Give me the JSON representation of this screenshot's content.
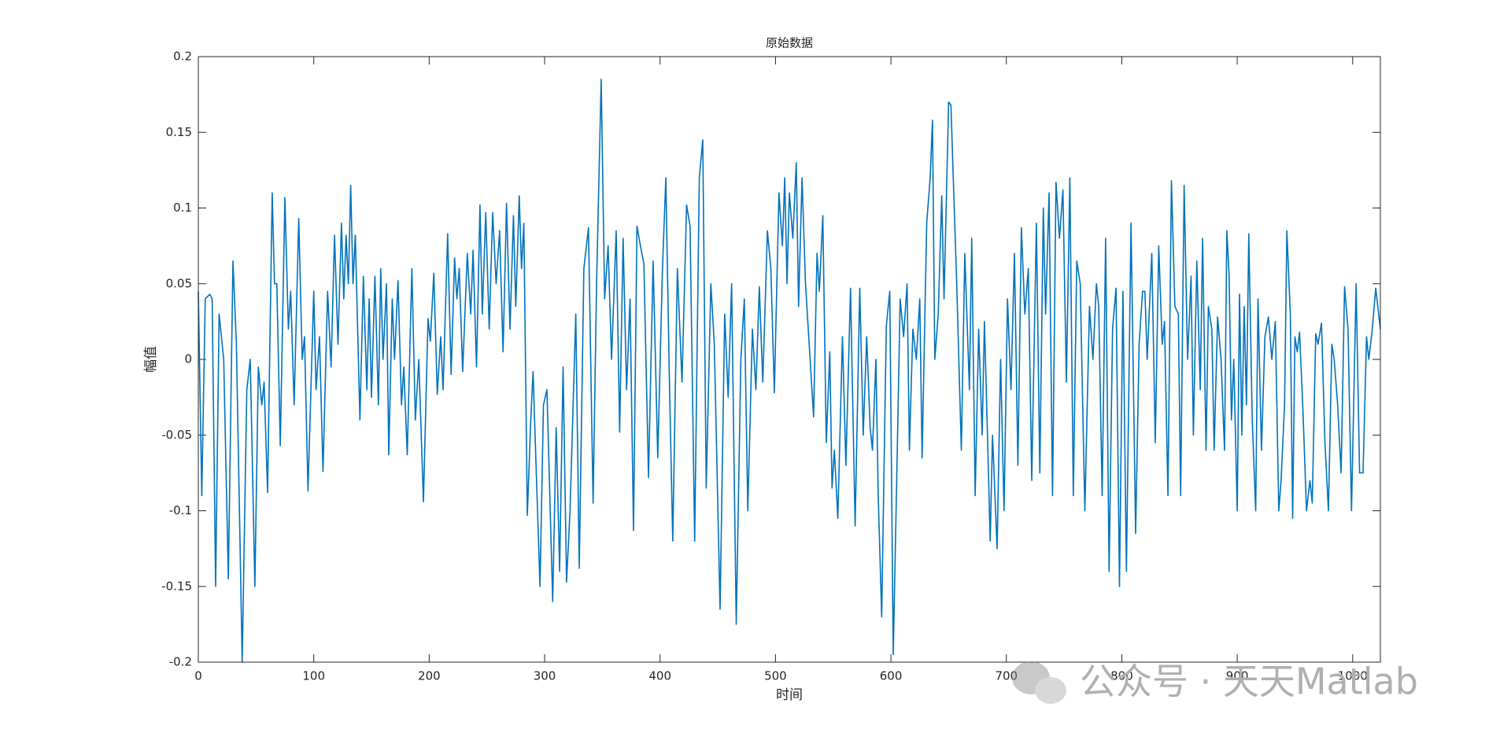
{
  "chart_data": {
    "type": "line",
    "title": "原始数据",
    "xlabel": "时间",
    "ylabel": "幅值",
    "color": "#0072bd",
    "xlim": [
      0,
      1024
    ],
    "ylim": [
      -0.2,
      0.2
    ],
    "xticks": [
      0,
      100,
      200,
      300,
      400,
      500,
      600,
      700,
      800,
      900,
      1000
    ],
    "yticks": [
      -0.2,
      -0.15,
      -0.1,
      -0.05,
      0,
      0.05,
      0.1,
      0.15,
      0.2
    ],
    "watermark": "公众号 · 天天Matlab",
    "x": [
      0,
      3,
      6,
      10,
      12,
      15,
      18,
      22,
      26,
      30,
      33,
      38,
      42,
      45,
      49,
      52,
      55,
      57,
      60,
      64,
      66,
      68,
      71,
      75,
      78,
      80,
      83,
      87,
      90,
      92,
      95,
      100,
      102,
      105,
      108,
      112,
      115,
      118,
      121,
      124,
      126,
      128,
      130,
      132,
      134,
      136,
      140,
      143,
      146,
      148,
      150,
      153,
      156,
      158,
      160,
      163,
      165,
      168,
      170,
      173,
      176,
      178,
      181,
      185,
      188,
      191,
      195,
      199,
      201,
      204,
      207,
      210,
      212,
      216,
      219,
      222,
      224,
      226,
      229,
      233,
      236,
      238,
      241,
      244,
      246,
      249,
      252,
      255,
      258,
      261,
      264,
      267,
      270,
      273,
      275,
      278,
      280,
      282,
      285,
      288,
      290,
      293,
      296,
      299,
      302,
      307,
      310,
      313,
      316,
      319,
      322,
      327,
      330,
      334,
      338,
      342,
      345,
      349,
      352,
      355,
      358,
      362,
      365,
      368,
      371,
      374,
      377,
      380,
      383,
      386,
      390,
      394,
      398,
      402,
      405,
      408,
      411,
      415,
      419,
      423,
      426,
      430,
      434,
      437,
      440,
      444,
      447,
      452,
      456,
      459,
      462,
      466,
      470,
      473,
      476,
      480,
      483,
      486,
      489,
      493,
      496,
      499,
      503,
      506,
      508,
      510,
      512,
      515,
      518,
      520,
      523,
      526,
      530,
      533,
      536,
      538,
      541,
      544,
      547,
      549,
      551,
      554,
      558,
      561,
      565,
      569,
      573,
      576,
      579,
      582,
      584,
      587,
      589,
      592,
      596,
      599,
      602,
      605,
      608,
      611,
      614,
      616,
      619,
      622,
      625,
      627,
      631,
      634,
      636,
      638,
      641,
      644,
      646,
      650,
      652,
      654,
      657,
      661,
      664,
      668,
      670,
      673,
      676,
      679,
      681,
      684,
      686,
      688,
      692,
      695,
      698,
      701,
      704,
      707,
      710,
      713,
      716,
      719,
      722,
      726,
      729,
      732,
      734,
      737,
      740,
      743,
      746,
      749,
      752,
      755,
      758,
      761,
      764,
      768,
      772,
      775,
      778,
      780,
      783,
      786,
      789,
      792,
      795,
      798,
      801,
      804,
      808,
      812,
      815,
      818,
      820,
      822,
      826,
      829,
      832,
      835,
      837,
      840,
      843,
      846,
      849,
      851,
      854,
      857,
      860,
      862,
      865,
      868,
      870,
      873,
      875,
      878,
      880,
      883,
      886,
      889,
      891,
      893,
      895,
      897,
      900,
      902,
      904,
      906,
      908,
      910,
      913,
      916,
      918,
      921,
      924,
      927,
      930,
      933,
      936,
      938,
      941,
      943,
      946,
      948,
      950,
      952,
      954,
      957,
      960,
      963,
      965,
      968,
      970,
      973,
      976,
      979,
      982,
      984,
      987,
      990,
      993,
      996,
      999,
      1003,
      1006,
      1009,
      1012,
      1014,
      1017,
      1020,
      1024
    ],
    "values": [
      0.045,
      -0.09,
      0.04,
      0.043,
      0.04,
      -0.15,
      0.03,
      0,
      -0.145,
      0.065,
      0.01,
      -0.2,
      -0.02,
      0,
      -0.15,
      -0.005,
      -0.03,
      -0.015,
      -0.088,
      0.11,
      0.05,
      0.05,
      -0.057,
      0.107,
      0.02,
      0.045,
      -0.03,
      0.093,
      0,
      0.015,
      -0.087,
      0.045,
      -0.02,
      0.015,
      -0.074,
      0.045,
      -0.005,
      0.082,
      0.01,
      0.09,
      0.04,
      0.082,
      0.05,
      0.115,
      0.05,
      0.082,
      -0.04,
      0.055,
      -0.02,
      0.04,
      -0.025,
      0.055,
      -0.03,
      0.06,
      0,
      0.05,
      -0.063,
      0.04,
      0,
      0.052,
      -0.03,
      -0.005,
      -0.063,
      0.06,
      -0.04,
      0,
      -0.094,
      0.027,
      0.012,
      0.057,
      -0.023,
      0.015,
      -0.02,
      0.083,
      -0.01,
      0.067,
      0.04,
      0.06,
      -0.008,
      0.07,
      0.03,
      0.072,
      -0.005,
      0.102,
      0.03,
      0.097,
      0.02,
      0.097,
      0.05,
      0.085,
      0.005,
      0.103,
      0.02,
      0.095,
      0.035,
      0.108,
      0.06,
      0.09,
      -0.103,
      -0.04,
      -0.008,
      -0.08,
      -0.15,
      -0.03,
      -0.02,
      -0.16,
      -0.045,
      -0.14,
      -0.005,
      -0.147,
      -0.1,
      0.03,
      -0.138,
      0.06,
      0.087,
      -0.095,
      0.05,
      0.185,
      0.04,
      0.075,
      0,
      0.085,
      -0.048,
      0.08,
      -0.02,
      0.04,
      -0.113,
      0.088,
      0.075,
      0.063,
      -0.078,
      0.065,
      -0.065,
      0.058,
      0.12,
      -0.01,
      -0.12,
      0.06,
      -0.015,
      0.102,
      0.088,
      -0.12,
      0.12,
      0.145,
      -0.085,
      0.05,
      0.01,
      -0.165,
      0.03,
      -0.025,
      0.05,
      -0.175,
      0,
      0.04,
      -0.1,
      0.02,
      -0.02,
      0.048,
      -0.015,
      0.085,
      0.06,
      -0.022,
      0.11,
      0.075,
      0.12,
      0.05,
      0.11,
      0.08,
      0.13,
      0.035,
      0.12,
      0.05,
      0,
      -0.038,
      0.07,
      0.045,
      0.095,
      -0.055,
      0.005,
      -0.085,
      -0.06,
      -0.105,
      0.015,
      -0.07,
      0.047,
      -0.11,
      0.047,
      -0.05,
      0.015,
      -0.045,
      -0.06,
      0,
      -0.09,
      -0.17,
      0.022,
      0.045,
      -0.195,
      -0.08,
      0.04,
      0.015,
      0.05,
      -0.06,
      0.02,
      0,
      0.04,
      -0.065,
      0.09,
      0.12,
      0.158,
      0,
      0.03,
      0.108,
      0.04,
      0.17,
      0.168,
      0.12,
      0.05,
      -0.06,
      0.07,
      -0.02,
      0.08,
      -0.09,
      0.02,
      -0.05,
      0.025,
      -0.06,
      -0.12,
      -0.05,
      -0.125,
      0,
      -0.1,
      0.04,
      -0.02,
      0.07,
      -0.07,
      0.087,
      0.03,
      0.06,
      -0.08,
      0.09,
      -0.075,
      0.1,
      0.03,
      0.11,
      -0.09,
      0.117,
      0.08,
      0.112,
      -0.015,
      0.12,
      -0.09,
      0.065,
      0.05,
      -0.1,
      0.035,
      0,
      0.05,
      0.035,
      -0.09,
      0.08,
      -0.14,
      0.02,
      0.047,
      -0.15,
      0.045,
      -0.14,
      0.09,
      -0.115,
      0.01,
      0.045,
      0.045,
      0,
      0.07,
      -0.055,
      0.075,
      0.01,
      0.025,
      -0.09,
      0.118,
      0.035,
      0.03,
      -0.09,
      0.115,
      0,
      0.055,
      -0.05,
      0.065,
      -0.02,
      0.08,
      -0.06,
      0.035,
      0.02,
      -0.06,
      0.028,
      0,
      -0.06,
      0.085,
      0.055,
      -0.04,
      0,
      -0.1,
      0.043,
      -0.05,
      0.035,
      -0.03,
      0.083,
      -0.04,
      -0.1,
      0.04,
      -0.06,
      0.015,
      0.028,
      0,
      0.025,
      -0.1,
      -0.08,
      -0.03,
      0.085,
      0.03,
      -0.105,
      0.015,
      0.005,
      0.018,
      -0.035,
      -0.1,
      -0.08,
      -0.095,
      0.017,
      0.01,
      0.024,
      -0.055,
      -0.1,
      0.01,
      0,
      -0.03,
      -0.075,
      0.048,
      0.02,
      -0.1,
      0.05,
      -0.075,
      -0.075,
      0.015,
      0,
      0.02,
      0.047,
      0.02
    ]
  }
}
